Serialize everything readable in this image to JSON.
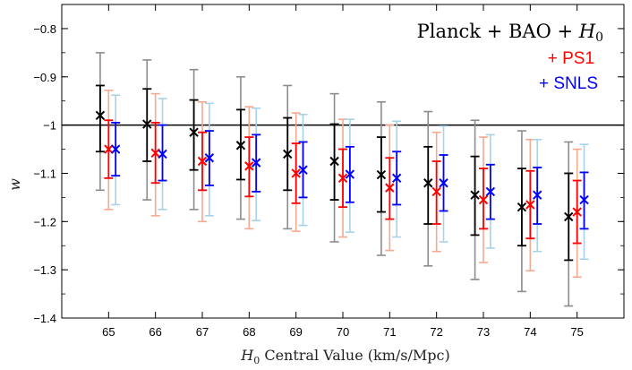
{
  "chart_data": {
    "type": "scatter",
    "title": "",
    "xlabel_math": "H",
    "xlabel_sub": "0",
    "xlabel_rest": " Central Value (km/s/Mpc)",
    "ylabel": "w",
    "categories": [
      65,
      66,
      67,
      68,
      69,
      70,
      71,
      72,
      73,
      74,
      75
    ],
    "ylim": [
      -1.4,
      -0.75
    ],
    "yticks": [
      -1.4,
      -1.3,
      -1.2,
      -1.1,
      -1.0,
      -0.9,
      -0.8
    ],
    "ytick_labels": [
      "−1.4",
      "−1.3",
      "−1.2",
      "−1.1",
      "−1",
      "−0.9",
      "−0.8"
    ],
    "reference_line": -1.0,
    "grid": false,
    "legend_placement": "top-right",
    "legend_title": "Planck + BAO + H0",
    "legend_title_parts": [
      "Planck + BAO + ",
      "H",
      "0"
    ],
    "series": [
      {
        "name": "",
        "label": "Planck + BAO + H0",
        "offset": -0.18,
        "color": "#000000",
        "outer_color": "#8c8c8c",
        "values": [
          -0.98,
          -0.998,
          -1.015,
          -1.042,
          -1.06,
          -1.075,
          -1.103,
          -1.12,
          -1.145,
          -1.17,
          -1.19
        ],
        "inner_lo": [
          -1.055,
          -1.075,
          -1.093,
          -1.113,
          -1.135,
          -1.155,
          -1.18,
          -1.205,
          -1.228,
          -1.25,
          -1.28
        ],
        "inner_hi": [
          -0.918,
          -0.925,
          -0.948,
          -0.968,
          -0.985,
          -0.998,
          -1.025,
          -1.045,
          -1.065,
          -1.09,
          -1.1
        ],
        "outer_lo": [
          -1.135,
          -1.155,
          -1.175,
          -1.195,
          -1.215,
          -1.242,
          -1.27,
          -1.292,
          -1.32,
          -1.345,
          -1.375
        ],
        "outer_hi": [
          -0.85,
          -0.865,
          -0.885,
          -0.9,
          -0.918,
          -0.935,
          -0.952,
          -0.972,
          -0.99,
          -1.012,
          -1.035
        ]
      },
      {
        "name": "PS1",
        "label": "+ PS1",
        "offset": 0.0,
        "color": "#ff0000",
        "outer_color": "#f5a98f",
        "values": [
          -1.05,
          -1.058,
          -1.075,
          -1.085,
          -1.1,
          -1.11,
          -1.13,
          -1.138,
          -1.155,
          -1.165,
          -1.18
        ],
        "inner_lo": [
          -1.11,
          -1.12,
          -1.135,
          -1.148,
          -1.162,
          -1.17,
          -1.195,
          -1.205,
          -1.215,
          -1.235,
          -1.245
        ],
        "inner_hi": [
          -0.99,
          -0.995,
          -1.015,
          -1.025,
          -1.038,
          -1.05,
          -1.068,
          -1.075,
          -1.09,
          -1.095,
          -1.115
        ],
        "outer_lo": [
          -1.175,
          -1.188,
          -1.2,
          -1.215,
          -1.22,
          -1.232,
          -1.26,
          -1.262,
          -1.285,
          -1.302,
          -1.315
        ],
        "outer_hi": [
          -0.928,
          -0.935,
          -0.952,
          -0.962,
          -0.975,
          -0.988,
          -1.0,
          -1.015,
          -1.025,
          -1.03,
          -1.05
        ]
      },
      {
        "name": "SNLS",
        "label": "+ SNLS",
        "offset": 0.15,
        "color": "#0000ff",
        "outer_color": "#a8d2e8",
        "values": [
          -1.05,
          -1.06,
          -1.068,
          -1.078,
          -1.093,
          -1.102,
          -1.11,
          -1.12,
          -1.138,
          -1.145,
          -1.155
        ],
        "inner_lo": [
          -1.105,
          -1.115,
          -1.125,
          -1.138,
          -1.15,
          -1.16,
          -1.165,
          -1.178,
          -1.195,
          -1.205,
          -1.215
        ],
        "inner_hi": [
          -0.995,
          -1.0,
          -1.012,
          -1.02,
          -1.035,
          -1.045,
          -1.055,
          -1.062,
          -1.082,
          -1.088,
          -1.098
        ],
        "outer_lo": [
          -1.165,
          -1.175,
          -1.188,
          -1.198,
          -1.208,
          -1.222,
          -1.232,
          -1.242,
          -1.255,
          -1.262,
          -1.278
        ],
        "outer_hi": [
          -0.938,
          -0.945,
          -0.955,
          -0.965,
          -0.978,
          -0.988,
          -0.992,
          -1.002,
          -1.02,
          -1.03,
          -1.04
        ]
      }
    ]
  }
}
